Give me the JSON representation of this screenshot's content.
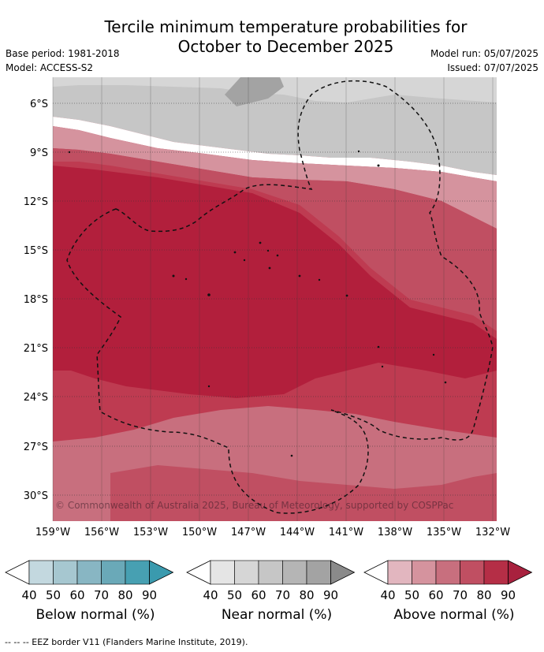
{
  "title": [
    "Tercile minimum temperature probabilities for",
    "October to December 2025"
  ],
  "base_period": "Base period: 1981-2018",
  "model": "Model: ACCESS-S2",
  "model_run": "Model run: 05/07/2025",
  "issued": "Issued: 07/07/2025",
  "copyright": "© Commonwealth of Australia 2025, Bureau of Meteorology, supported by COSPPac",
  "lat_labels": [
    "6°S",
    "9°S",
    "12°S",
    "15°S",
    "18°S",
    "21°S",
    "24°S",
    "27°S",
    "30°S"
  ],
  "lon_labels": [
    "159°W",
    "156°W",
    "153°W",
    "150°W",
    "147°W",
    "144°W",
    "141°W",
    "138°W",
    "135°W",
    "132°W"
  ],
  "colorbars": [
    {
      "label": "Below normal (%)",
      "ticks": [
        "40",
        "50",
        "60",
        "70",
        "80",
        "90"
      ],
      "colors": [
        "#c3d8df",
        "#a6c7d0",
        "#88b6c3",
        "#6aa9b8",
        "#47a0b2"
      ]
    },
    {
      "label": "Near normal (%)",
      "ticks": [
        "40",
        "50",
        "60",
        "70",
        "80",
        "90"
      ],
      "colors": [
        "#e5e5e5",
        "#d6d6d6",
        "#c6c6c6",
        "#b5b5b5",
        "#a3a3a3"
      ]
    },
    {
      "label": "Above normal (%)",
      "ticks": [
        "40",
        "50",
        "60",
        "70",
        "80",
        "90"
      ],
      "colors": [
        "#e2b6bf",
        "#d5939e",
        "#c86f7e",
        "#c04f62",
        "#b52e46"
      ]
    }
  ],
  "legend_footer": "--  --  -- EEZ border V11 (Flanders Marine Institute, 2019)."
}
